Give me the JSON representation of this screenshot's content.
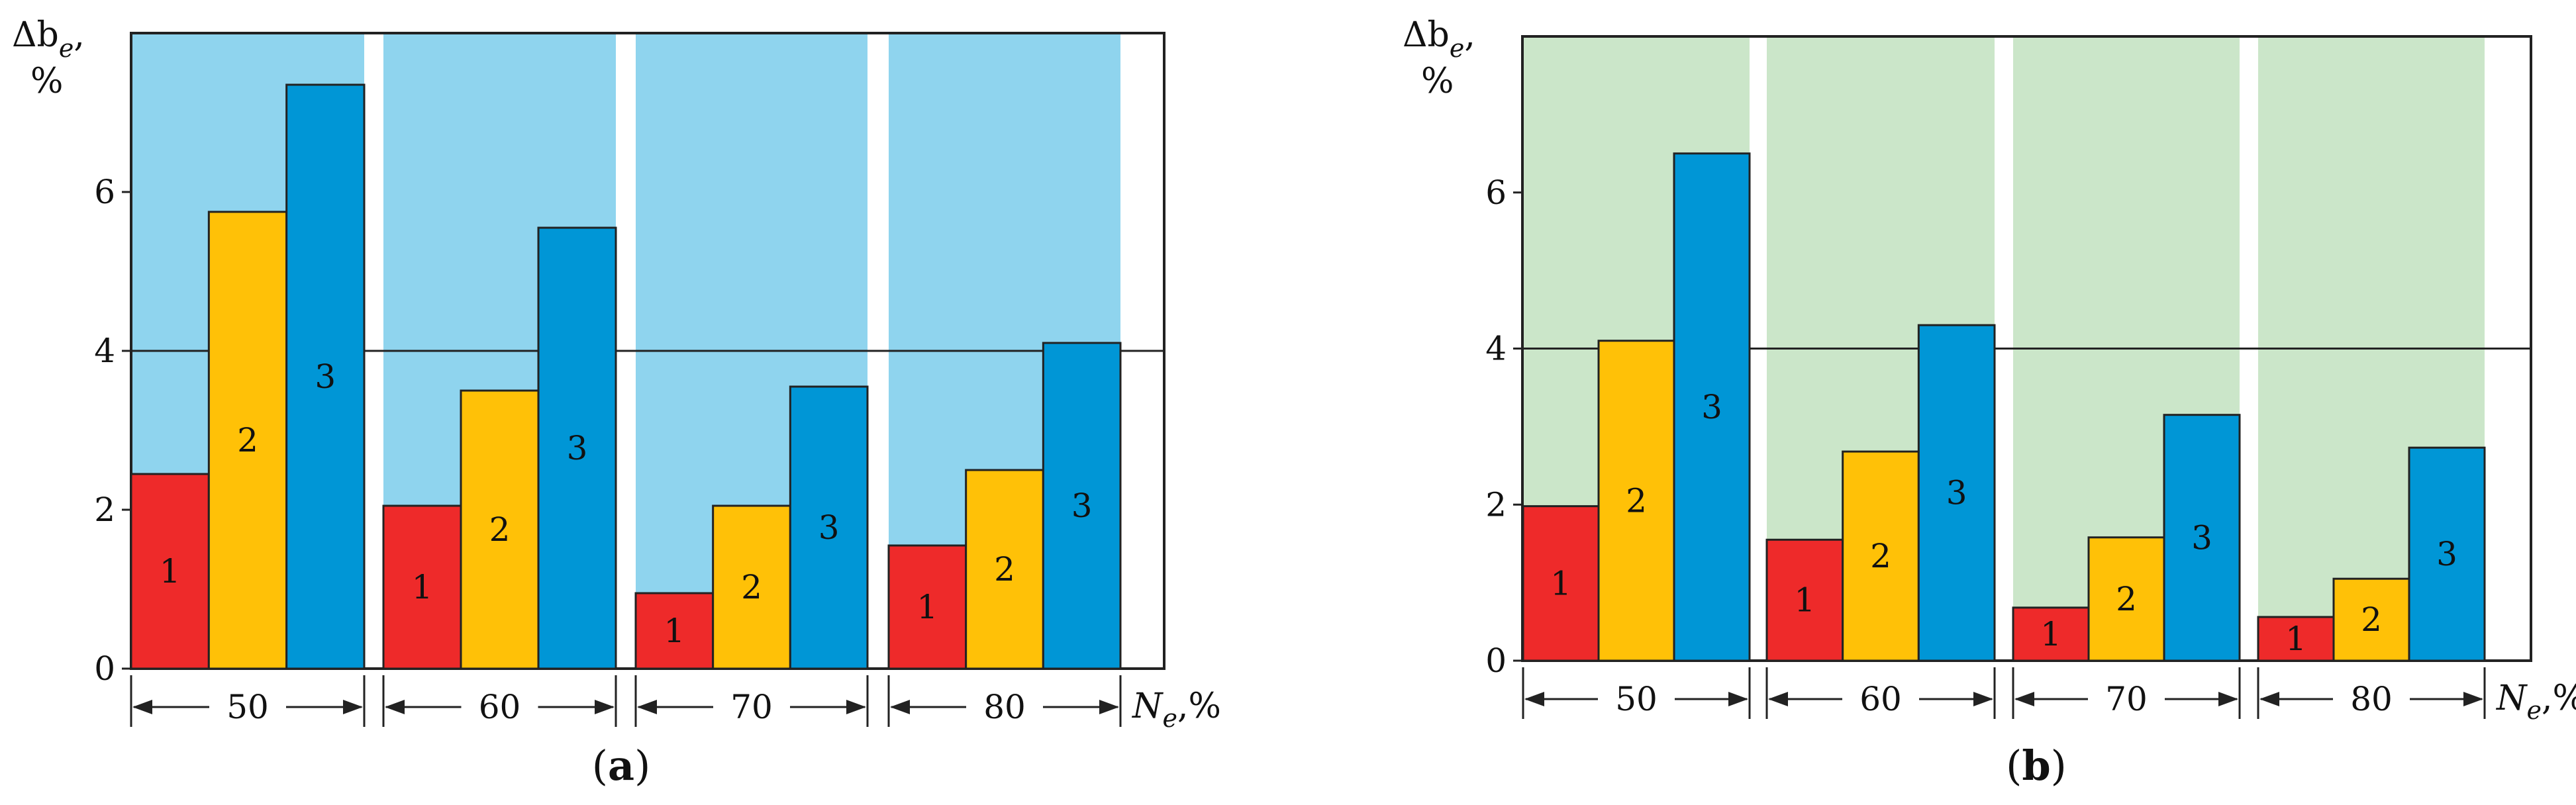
{
  "chart_data": [
    {
      "type": "bar",
      "panel_label": "a",
      "categories": [
        "50",
        "60",
        "70",
        "80"
      ],
      "series": [
        {
          "label": "1",
          "color": "#ee2a2a",
          "values": [
            2.45,
            2.05,
            0.95,
            1.55
          ]
        },
        {
          "label": "2",
          "color": "#ffc107",
          "values": [
            5.75,
            3.5,
            2.05,
            2.5
          ]
        },
        {
          "label": "3",
          "color": "#0096d6",
          "values": [
            7.35,
            5.55,
            3.55,
            4.1
          ]
        }
      ],
      "ylabel_main": "Δb",
      "ylabel_sub": "e",
      "ylabel_suffix": ",",
      "ylabel_unit": "%",
      "xlabel_main": "N",
      "xlabel_sub": "e",
      "xlabel_suffix": ",%",
      "yticks": [
        "0",
        "2",
        "4",
        "6"
      ],
      "ylim": [
        0,
        8
      ],
      "reference_line": 4,
      "background_color": "#8fd4ee"
    },
    {
      "type": "bar",
      "panel_label": "b",
      "categories": [
        "50",
        "60",
        "70",
        "80"
      ],
      "series": [
        {
          "label": "1",
          "color": "#ee2a2a",
          "values": [
            1.98,
            1.55,
            0.68,
            0.56
          ]
        },
        {
          "label": "2",
          "color": "#ffc107",
          "values": [
            4.1,
            2.68,
            1.58,
            1.05
          ]
        },
        {
          "label": "3",
          "color": "#0096d6",
          "values": [
            6.5,
            4.3,
            3.15,
            2.73
          ]
        }
      ],
      "ylabel_main": "Δb",
      "ylabel_sub": "e",
      "ylabel_suffix": ",",
      "ylabel_unit": "%",
      "xlabel_main": "N",
      "xlabel_sub": "e",
      "xlabel_suffix": ",%",
      "yticks": [
        "0",
        "2",
        "4",
        "6"
      ],
      "ylim": [
        0,
        8
      ],
      "reference_line": 4,
      "background_color": "#cbe6c9"
    }
  ]
}
